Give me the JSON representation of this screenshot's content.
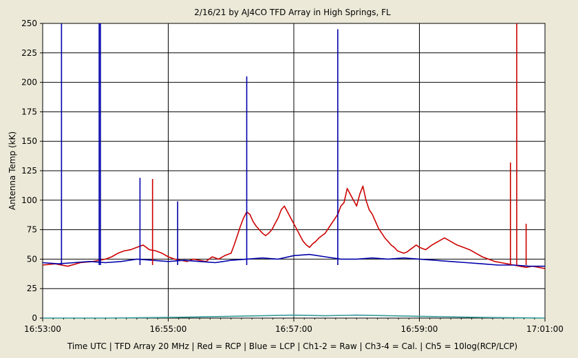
{
  "chart_data": {
    "type": "line",
    "title": "2/16/21  by  AJ4CO TFD Array  in  High Springs, FL",
    "xlabel": "Time UTC | TFD Array 20 MHz | Red = RCP | Blue = LCP | Ch1-2 = Raw | Ch3-4 = Cal. | Ch5 = 10log(RCP/LCP)",
    "ylabel": "Antenna Temp (kK)",
    "ylim": [
      0,
      250
    ],
    "yticks": [
      0,
      25,
      50,
      75,
      100,
      125,
      150,
      175,
      200,
      225,
      250
    ],
    "xlim_minutes": [
      0,
      8
    ],
    "xticks": [
      {
        "minute": 0,
        "label": "16:53:00"
      },
      {
        "minute": 2,
        "label": "16:55:00"
      },
      {
        "minute": 4,
        "label": "16:57:00"
      },
      {
        "minute": 6,
        "label": "16:59:00"
      },
      {
        "minute": 8,
        "label": "17:01:00"
      }
    ],
    "grid": true,
    "series": [
      {
        "color": "#cc0000",
        "x_minutes": [
          0.0,
          0.2,
          0.4,
          0.6,
          0.8,
          1.0,
          1.1,
          1.2,
          1.3,
          1.4,
          1.5,
          1.6,
          1.7,
          1.8,
          1.9,
          2.0,
          2.1,
          2.2,
          2.3,
          2.4,
          2.5,
          2.6,
          2.7,
          2.8,
          2.9,
          3.0,
          3.05,
          3.1,
          3.15,
          3.2,
          3.25,
          3.3,
          3.35,
          3.4,
          3.45,
          3.5,
          3.55,
          3.6,
          3.65,
          3.7,
          3.75,
          3.8,
          3.85,
          3.9,
          3.95,
          4.0,
          4.05,
          4.1,
          4.15,
          4.2,
          4.25,
          4.3,
          4.35,
          4.4,
          4.5,
          4.6,
          4.7,
          4.75,
          4.8,
          4.85,
          4.9,
          4.95,
          5.0,
          5.05,
          5.1,
          5.15,
          5.2,
          5.25,
          5.3,
          5.35,
          5.4,
          5.45,
          5.5,
          5.55,
          5.6,
          5.65,
          5.7,
          5.75,
          5.8,
          5.85,
          5.9,
          5.95,
          6.0,
          6.1,
          6.2,
          6.3,
          6.4,
          6.5,
          6.6,
          6.7,
          6.8,
          6.9,
          7.0,
          7.1,
          7.2,
          7.3,
          7.4,
          7.5,
          7.6,
          7.7,
          7.8,
          7.9,
          8.0
        ],
        "values": [
          45,
          46,
          44,
          47,
          48,
          50,
          52,
          55,
          57,
          58,
          60,
          62,
          58,
          57,
          55,
          52,
          50,
          49,
          48,
          50,
          49,
          48,
          52,
          50,
          53,
          55,
          62,
          70,
          78,
          85,
          90,
          88,
          82,
          78,
          75,
          72,
          70,
          72,
          75,
          80,
          85,
          92,
          95,
          90,
          85,
          80,
          75,
          70,
          65,
          62,
          60,
          63,
          65,
          68,
          72,
          80,
          88,
          95,
          98,
          110,
          105,
          100,
          95,
          105,
          112,
          100,
          92,
          88,
          82,
          76,
          72,
          68,
          65,
          62,
          60,
          57,
          56,
          55,
          56,
          58,
          60,
          62,
          60,
          58,
          62,
          65,
          68,
          65,
          62,
          60,
          58,
          55,
          52,
          50,
          48,
          47,
          46,
          45,
          44,
          43,
          44,
          43,
          42
        ]
      },
      {
        "color": "#0000aa",
        "x_minutes": [
          0.0,
          0.25,
          0.5,
          0.75,
          1.0,
          1.25,
          1.5,
          1.75,
          2.0,
          2.25,
          2.5,
          2.75,
          3.0,
          3.25,
          3.5,
          3.75,
          4.0,
          4.25,
          4.5,
          4.75,
          5.0,
          5.25,
          5.5,
          5.75,
          6.0,
          6.25,
          6.5,
          6.75,
          7.0,
          7.25,
          7.5,
          7.75,
          8.0
        ],
        "values": [
          47,
          46,
          47,
          48,
          47,
          48,
          50,
          49,
          48,
          49,
          48,
          47,
          49,
          50,
          51,
          50,
          53,
          54,
          52,
          50,
          50,
          51,
          50,
          51,
          50,
          49,
          48,
          47,
          46,
          45,
          45,
          44,
          44
        ]
      },
      {
        "color": "#339999",
        "x_minutes": [
          0.0,
          1.0,
          2.0,
          2.5,
          3.0,
          3.5,
          4.0,
          4.5,
          5.0,
          5.5,
          6.0,
          7.0,
          8.0
        ],
        "values": [
          0,
          0,
          0.5,
          1,
          1.5,
          2,
          2.5,
          2,
          2.5,
          2,
          1.5,
          0.5,
          0
        ]
      }
    ],
    "spikes": [
      {
        "color": "#0000aa",
        "minute": 0.3,
        "value": 250
      },
      {
        "color": "#0000aa",
        "minute": 0.9,
        "value": 250
      },
      {
        "color": "#0000aa",
        "minute": 0.92,
        "value": 250
      },
      {
        "color": "#0000aa",
        "minute": 1.55,
        "value": 119
      },
      {
        "color": "#cc0000",
        "minute": 1.75,
        "value": 118
      },
      {
        "color": "#0000aa",
        "minute": 2.15,
        "value": 99
      },
      {
        "color": "#0000aa",
        "minute": 3.25,
        "value": 205
      },
      {
        "color": "#0000aa",
        "minute": 4.7,
        "value": 245
      },
      {
        "color": "#cc0000",
        "minute": 7.45,
        "value": 132
      },
      {
        "color": "#cc0000",
        "minute": 7.55,
        "value": 250
      },
      {
        "color": "#cc0000",
        "minute": 7.7,
        "value": 80
      }
    ]
  }
}
